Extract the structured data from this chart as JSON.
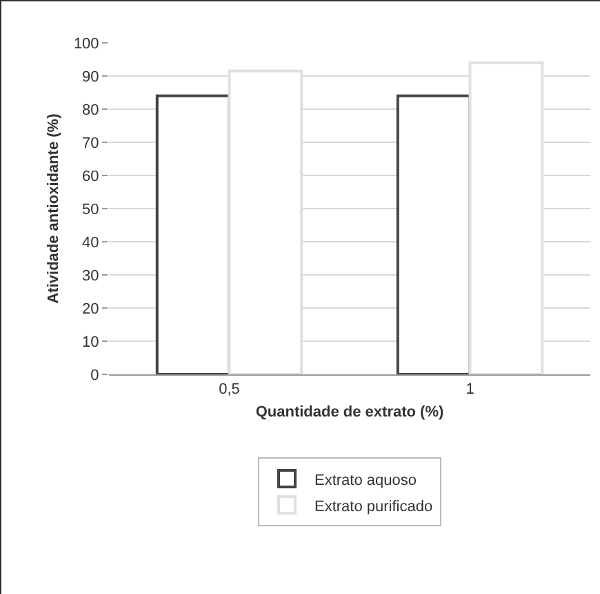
{
  "chart_data": {
    "type": "bar",
    "xlabel": "Quantidade de extrato (%)",
    "ylabel": "Atividade antioxidante (%)",
    "categories": [
      "0,5",
      "1"
    ],
    "series": [
      {
        "name": "Extrato aquoso",
        "color": "#444444",
        "values": [
          84,
          84
        ]
      },
      {
        "name": "Extrato purificado",
        "color": "#e0e0e0",
        "values": [
          91.5,
          94
        ]
      }
    ],
    "ylim": [
      0,
      100
    ],
    "yticks": [
      0,
      10,
      20,
      30,
      40,
      50,
      60,
      70,
      80,
      90,
      100
    ],
    "grid": "y",
    "legend": "bottom"
  }
}
